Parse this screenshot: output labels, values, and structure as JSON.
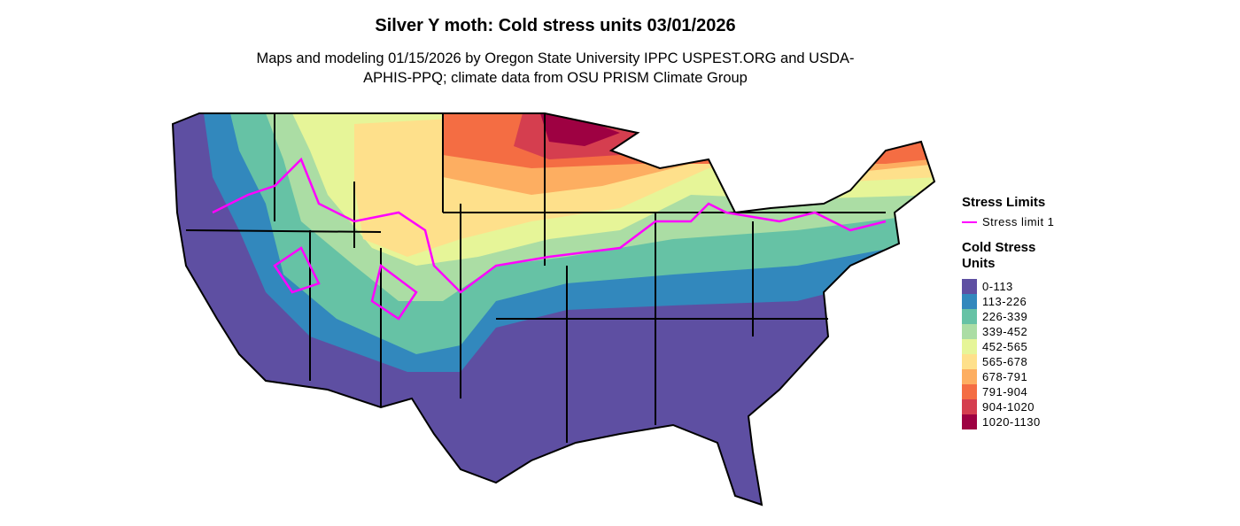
{
  "header": {
    "title": "Silver Y moth: Cold stress units 03/01/2026",
    "subtitle": "Maps and modeling 01/15/2026 by Oregon State University IPPC USPEST.ORG and USDA-APHIS-PPQ; climate data from OSU PRISM Climate Group"
  },
  "legend": {
    "stress_limits": {
      "title": "Stress Limits",
      "items": [
        {
          "label": "Stress limit 1",
          "color": "#ff00ff"
        }
      ]
    },
    "cold_stress": {
      "title": "Cold Stress Units",
      "items": [
        {
          "label": "0-113",
          "color": "#5e4fa2"
        },
        {
          "label": "113-226",
          "color": "#3288bd"
        },
        {
          "label": "226-339",
          "color": "#66c2a5"
        },
        {
          "label": "339-452",
          "color": "#abdda4"
        },
        {
          "label": "452-565",
          "color": "#e6f598"
        },
        {
          "label": "565-678",
          "color": "#fee08b"
        },
        {
          "label": "678-791",
          "color": "#fdae61"
        },
        {
          "label": "791-904",
          "color": "#f46d43"
        },
        {
          "label": "904-1020",
          "color": "#d53e4f"
        },
        {
          "label": "1020-1130",
          "color": "#9e0142"
        }
      ]
    }
  }
}
